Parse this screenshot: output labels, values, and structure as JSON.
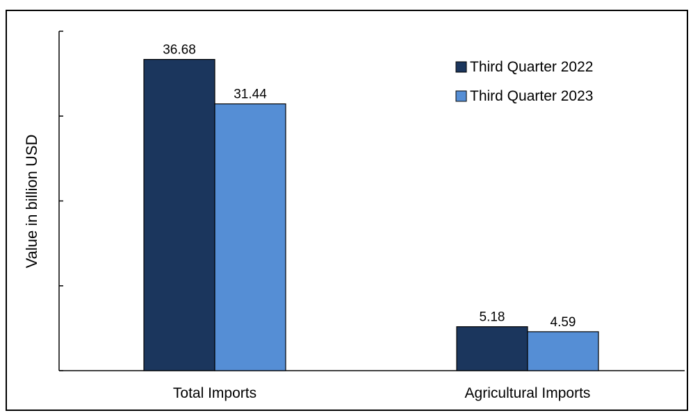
{
  "chart_data": {
    "type": "bar",
    "title": "",
    "xlabel": "",
    "ylabel": "Value in billion USD",
    "categories": [
      "Total Imports",
      "Agricultural Imports"
    ],
    "series": [
      {
        "name": "Third Quarter 2022",
        "values": [
          36.68,
          5.18
        ],
        "color": "#1b365d"
      },
      {
        "name": "Third Quarter 2023",
        "values": [
          31.44,
          4.59
        ],
        "color": "#558ed5"
      }
    ],
    "ylim": [
      0,
      40
    ],
    "ytick_labels_shown": false,
    "legend_position": "top-right",
    "grid": false
  }
}
